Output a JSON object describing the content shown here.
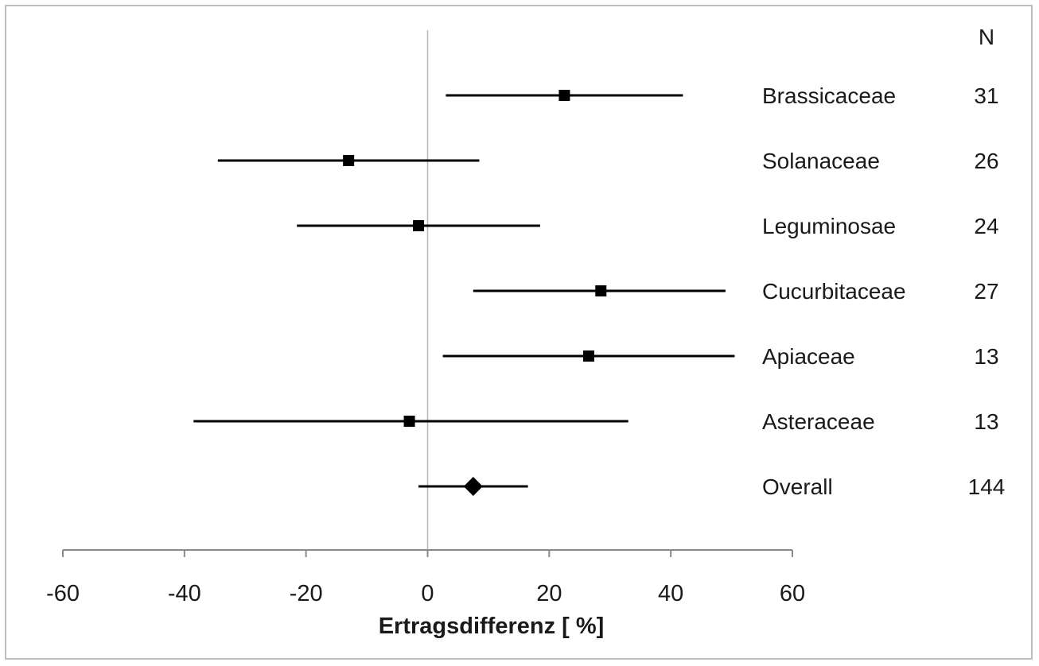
{
  "chart_data": {
    "type": "forest",
    "title": "",
    "xlabel": "Ertragsdifferenz [ %]",
    "xlim": [
      -60,
      60
    ],
    "xticks": [
      "-60",
      "-40",
      "-20",
      "0",
      "20",
      "40",
      "60"
    ],
    "reference_line": 0,
    "n_header": "N",
    "rows": [
      {
        "label": "Brassicaceae",
        "n": "31",
        "estimate": 22.5,
        "lower": 3,
        "upper": 42,
        "marker": "square"
      },
      {
        "label": "Solanaceae",
        "n": "26",
        "estimate": -13,
        "lower": -34.5,
        "upper": 8.5,
        "marker": "square"
      },
      {
        "label": "Leguminosae",
        "n": "24",
        "estimate": -1.5,
        "lower": -21.5,
        "upper": 18.5,
        "marker": "square"
      },
      {
        "label": "Cucurbitaceae",
        "n": "27",
        "estimate": 28.5,
        "lower": 7.5,
        "upper": 49,
        "marker": "square"
      },
      {
        "label": "Apiaceae",
        "n": "13",
        "estimate": 26.5,
        "lower": 2.5,
        "upper": 50.5,
        "marker": "square"
      },
      {
        "label": "Asteraceae",
        "n": "13",
        "estimate": -3,
        "lower": -38.5,
        "upper": 33,
        "marker": "square"
      },
      {
        "label": "Overall",
        "n": "144",
        "estimate": 7.5,
        "lower": -1.5,
        "upper": 16.5,
        "marker": "diamond"
      }
    ]
  }
}
